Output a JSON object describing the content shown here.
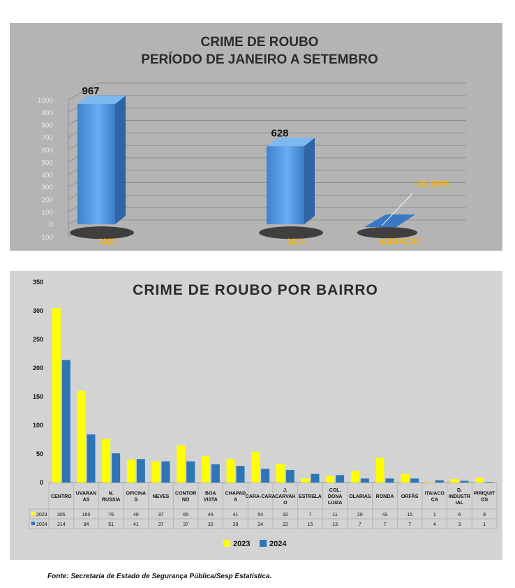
{
  "chart_data": [
    {
      "type": "bar",
      "title": "CRIME DE ROUBO",
      "subtitle": "PERÍODO DE JANEIRO A SETEMBRO",
      "categories": [
        "2023",
        "2024",
        "VARIAÇÃO"
      ],
      "values": [
        967,
        628,
        -35.06
      ],
      "data_labels": [
        "967",
        "628",
        "-35,06%"
      ],
      "yticks": [
        "-100",
        "0",
        "100",
        "200",
        "300",
        "400",
        "500",
        "600",
        "700",
        "800",
        "900",
        "1000"
      ],
      "ylim": [
        -100,
        1000
      ],
      "grid": true,
      "style": "3d",
      "colors": {
        "bar": "#4a8fd8",
        "label": "#f2b20f"
      }
    },
    {
      "type": "bar",
      "title": "CRIME DE ROUBO POR BAIRRO",
      "categories": [
        "CENTRO",
        "UVARAN AS",
        "N. RUSSIA",
        "OFICINA S",
        "NEVES",
        "CONTOR NO",
        "BOA VISTA",
        "CHAPAD A",
        "CARA-CARA",
        "J. CARVAH O",
        "ESTRELA",
        "COL. DONA LUIZA",
        "OLARIAS",
        "RONDA",
        "ORFÃS",
        "ITAIACO CA",
        "D. INDUSTR IAL",
        "PIRIQUIT OS"
      ],
      "series": [
        {
          "name": "2023",
          "values": [
            305,
            160,
            76,
            40,
            37,
            65,
            46,
            41,
            54,
            32,
            7,
            11,
            20,
            43,
            15,
            1,
            6,
            8
          ],
          "color": "#ffff00"
        },
        {
          "name": "2024",
          "values": [
            214,
            84,
            51,
            41,
            37,
            37,
            32,
            29,
            24,
            22,
            15,
            13,
            7,
            7,
            7,
            4,
            3,
            1
          ],
          "color": "#2e75b6"
        }
      ],
      "yticks": [
        "0",
        "50",
        "100",
        "150",
        "200",
        "250",
        "300",
        "350"
      ],
      "ylim": [
        0,
        350
      ],
      "legend": "bottom",
      "data_table": true
    }
  ],
  "source_note": "Fonte: Secretaria de Estado de Segurança Pública/Sesp Estatística."
}
